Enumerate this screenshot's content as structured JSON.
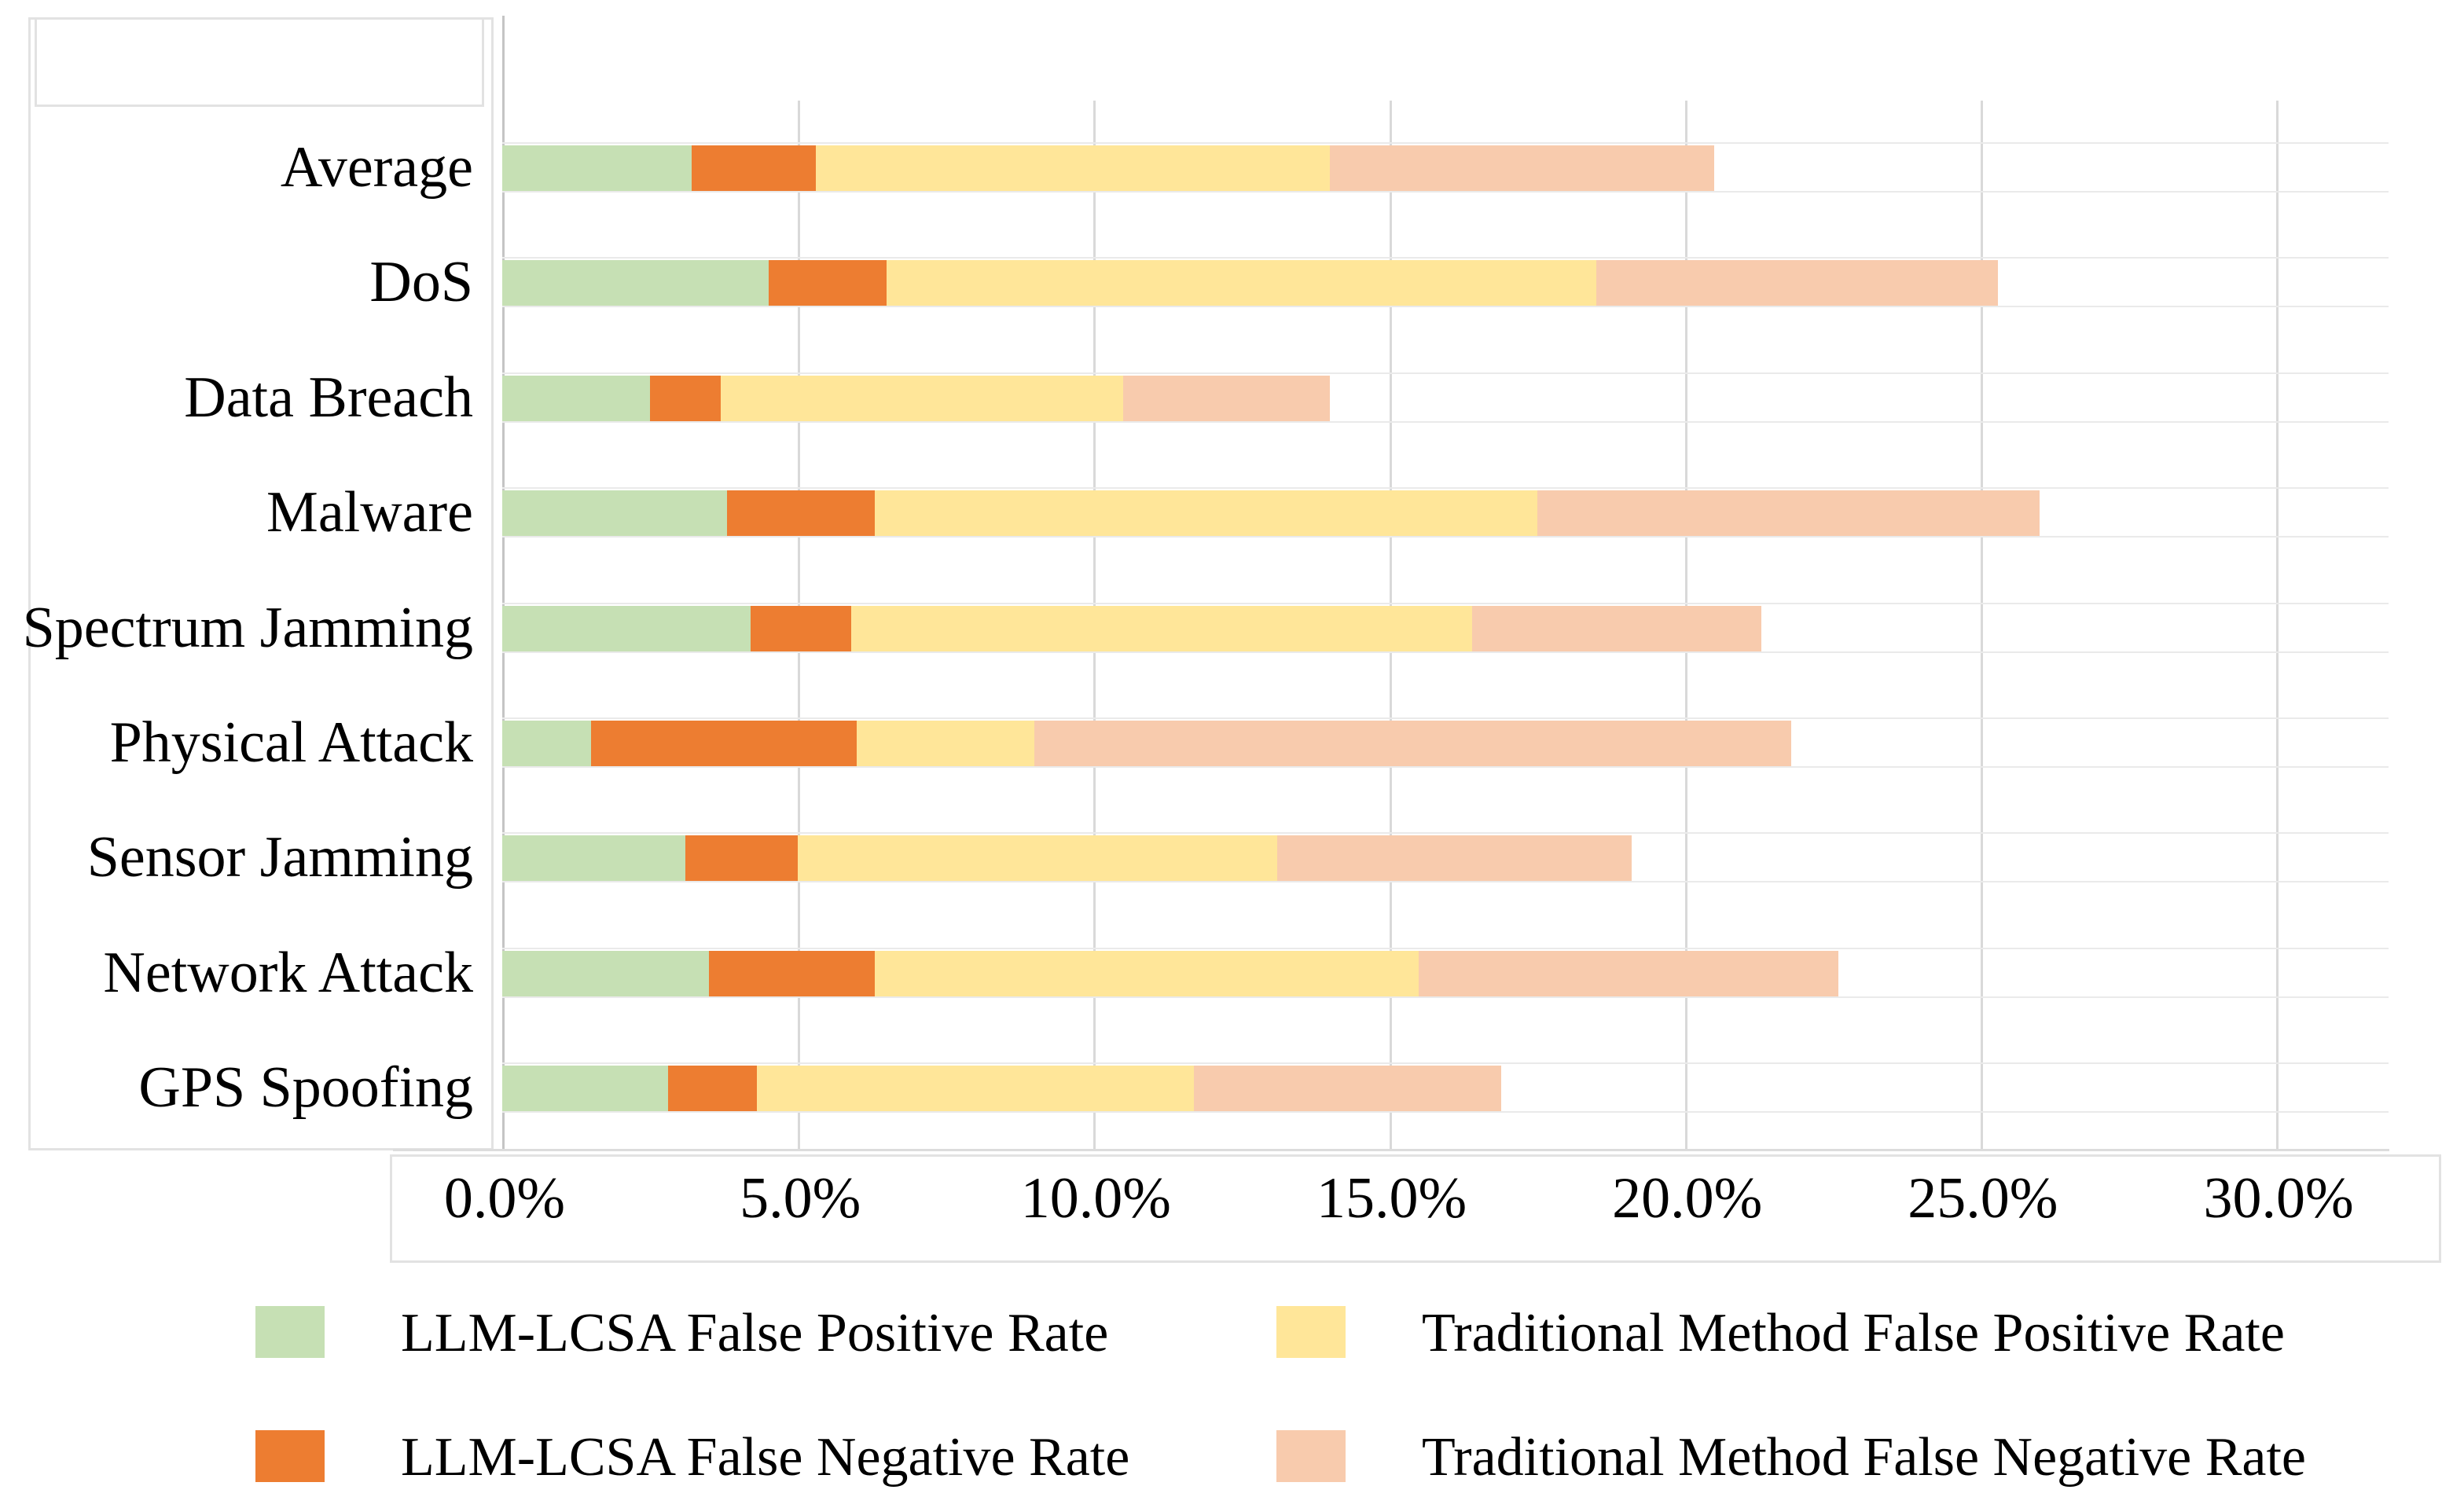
{
  "chart_data": {
    "type": "bar",
    "orientation": "horizontal",
    "stacked": true,
    "title": "",
    "xlabel": "",
    "ylabel": "",
    "grid": true,
    "legend_position": "bottom",
    "categories": [
      "Average",
      "DoS",
      "Data Breach",
      "Malware",
      "Spectrum Jamming",
      "Physical Attack",
      "Sensor Jamming",
      "Network Attack",
      "GPS Spoofing"
    ],
    "series": [
      {
        "name": "LLM-LCSA False Positive Rate",
        "color": "#c6e0b4",
        "values": [
          3.2,
          4.5,
          2.5,
          3.8,
          4.2,
          1.5,
          3.1,
          3.5,
          2.8
        ]
      },
      {
        "name": "LLM-LCSA False Negative Rate",
        "color": "#ed7d31",
        "values": [
          2.1,
          2.0,
          1.2,
          2.5,
          1.7,
          4.5,
          1.9,
          2.8,
          1.5
        ]
      },
      {
        "name": "Traditional Method False Positive Rate",
        "color": "#ffe699",
        "values": [
          8.7,
          12.0,
          6.8,
          11.2,
          10.5,
          3.0,
          8.1,
          9.2,
          7.4
        ]
      },
      {
        "name": "Traditional Method False Negative Rate",
        "color": "#f8cbad",
        "values": [
          6.5,
          6.8,
          3.5,
          8.5,
          4.9,
          12.8,
          6.0,
          7.1,
          5.2
        ]
      }
    ],
    "x_axis": {
      "ticks": [
        "0.0%",
        "5.0%",
        "10.0%",
        "15.0%",
        "20.0%",
        "25.0%",
        "30.0%"
      ],
      "tick_values": [
        0,
        5,
        10,
        15,
        20,
        25,
        30
      ],
      "min": 0,
      "max_visible": 31.9,
      "unit": "%"
    },
    "legend": [
      {
        "label": "LLM-LCSA False Positive Rate",
        "color": "#c6e0b4"
      },
      {
        "label": "Traditional Method False Positive Rate",
        "color": "#ffe699"
      },
      {
        "label": "LLM-LCSA False Negative Rate",
        "color": "#ed7d31"
      },
      {
        "label": "Traditional Method False Negative Rate",
        "color": "#f8cbad"
      }
    ],
    "colors": {
      "gridline": "#d9d9d9",
      "zero_axis": "#c5c5c5",
      "row_track_border": "#eaeaea",
      "box_border": "#e2e2e2",
      "text": "#000000"
    }
  }
}
